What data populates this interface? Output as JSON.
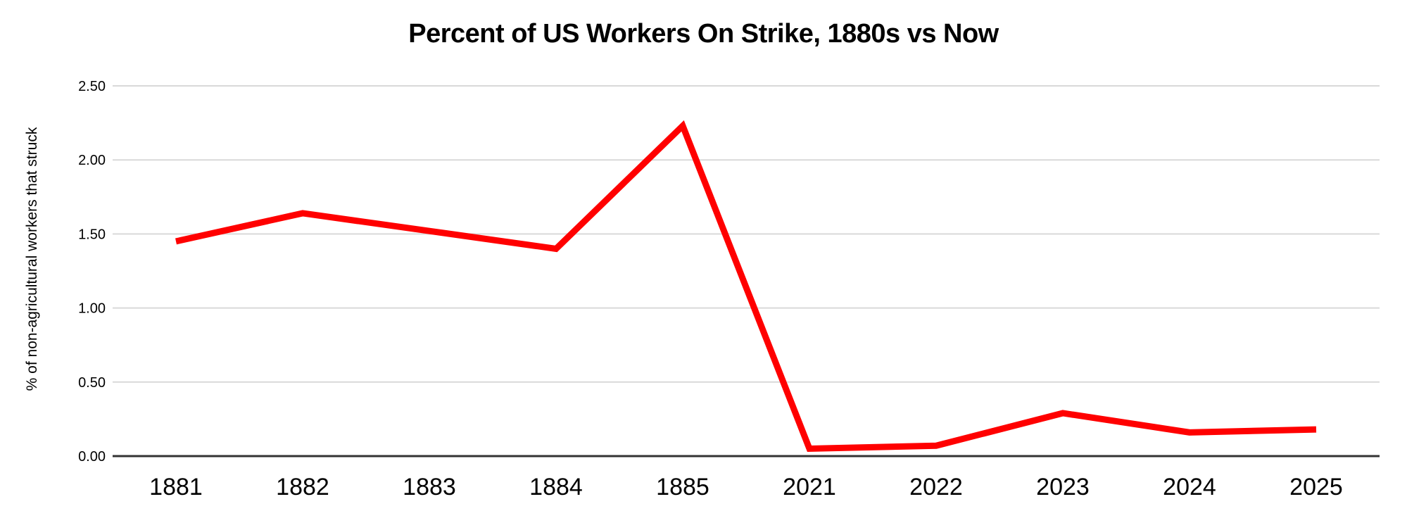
{
  "page": {
    "background": "#ffffff"
  },
  "chart_data": {
    "type": "line",
    "title": "Percent of US Workers On Strike, 1880s vs Now",
    "xlabel": "",
    "ylabel": "% of non-agricultural workers that struck",
    "categories": [
      "1881",
      "1882",
      "1883",
      "1884",
      "1885",
      "2021",
      "2022",
      "2023",
      "2024",
      "2025"
    ],
    "series": [
      {
        "name": "% of non-agricultural workers that struck",
        "color": "#ff0000",
        "values": [
          1.45,
          1.64,
          1.52,
          1.4,
          2.23,
          0.05,
          0.07,
          0.29,
          0.16,
          0.18
        ]
      }
    ],
    "yticks": [
      "0.00",
      "0.50",
      "1.00",
      "1.50",
      "2.00",
      "2.50"
    ],
    "ylim": [
      0,
      2.5
    ],
    "grid": "horizontal-only",
    "legend": "none",
    "colors": {
      "grid": "#d9d9d9",
      "axis": "#333333",
      "tick_text": "#000000",
      "background": "#ffffff"
    }
  }
}
